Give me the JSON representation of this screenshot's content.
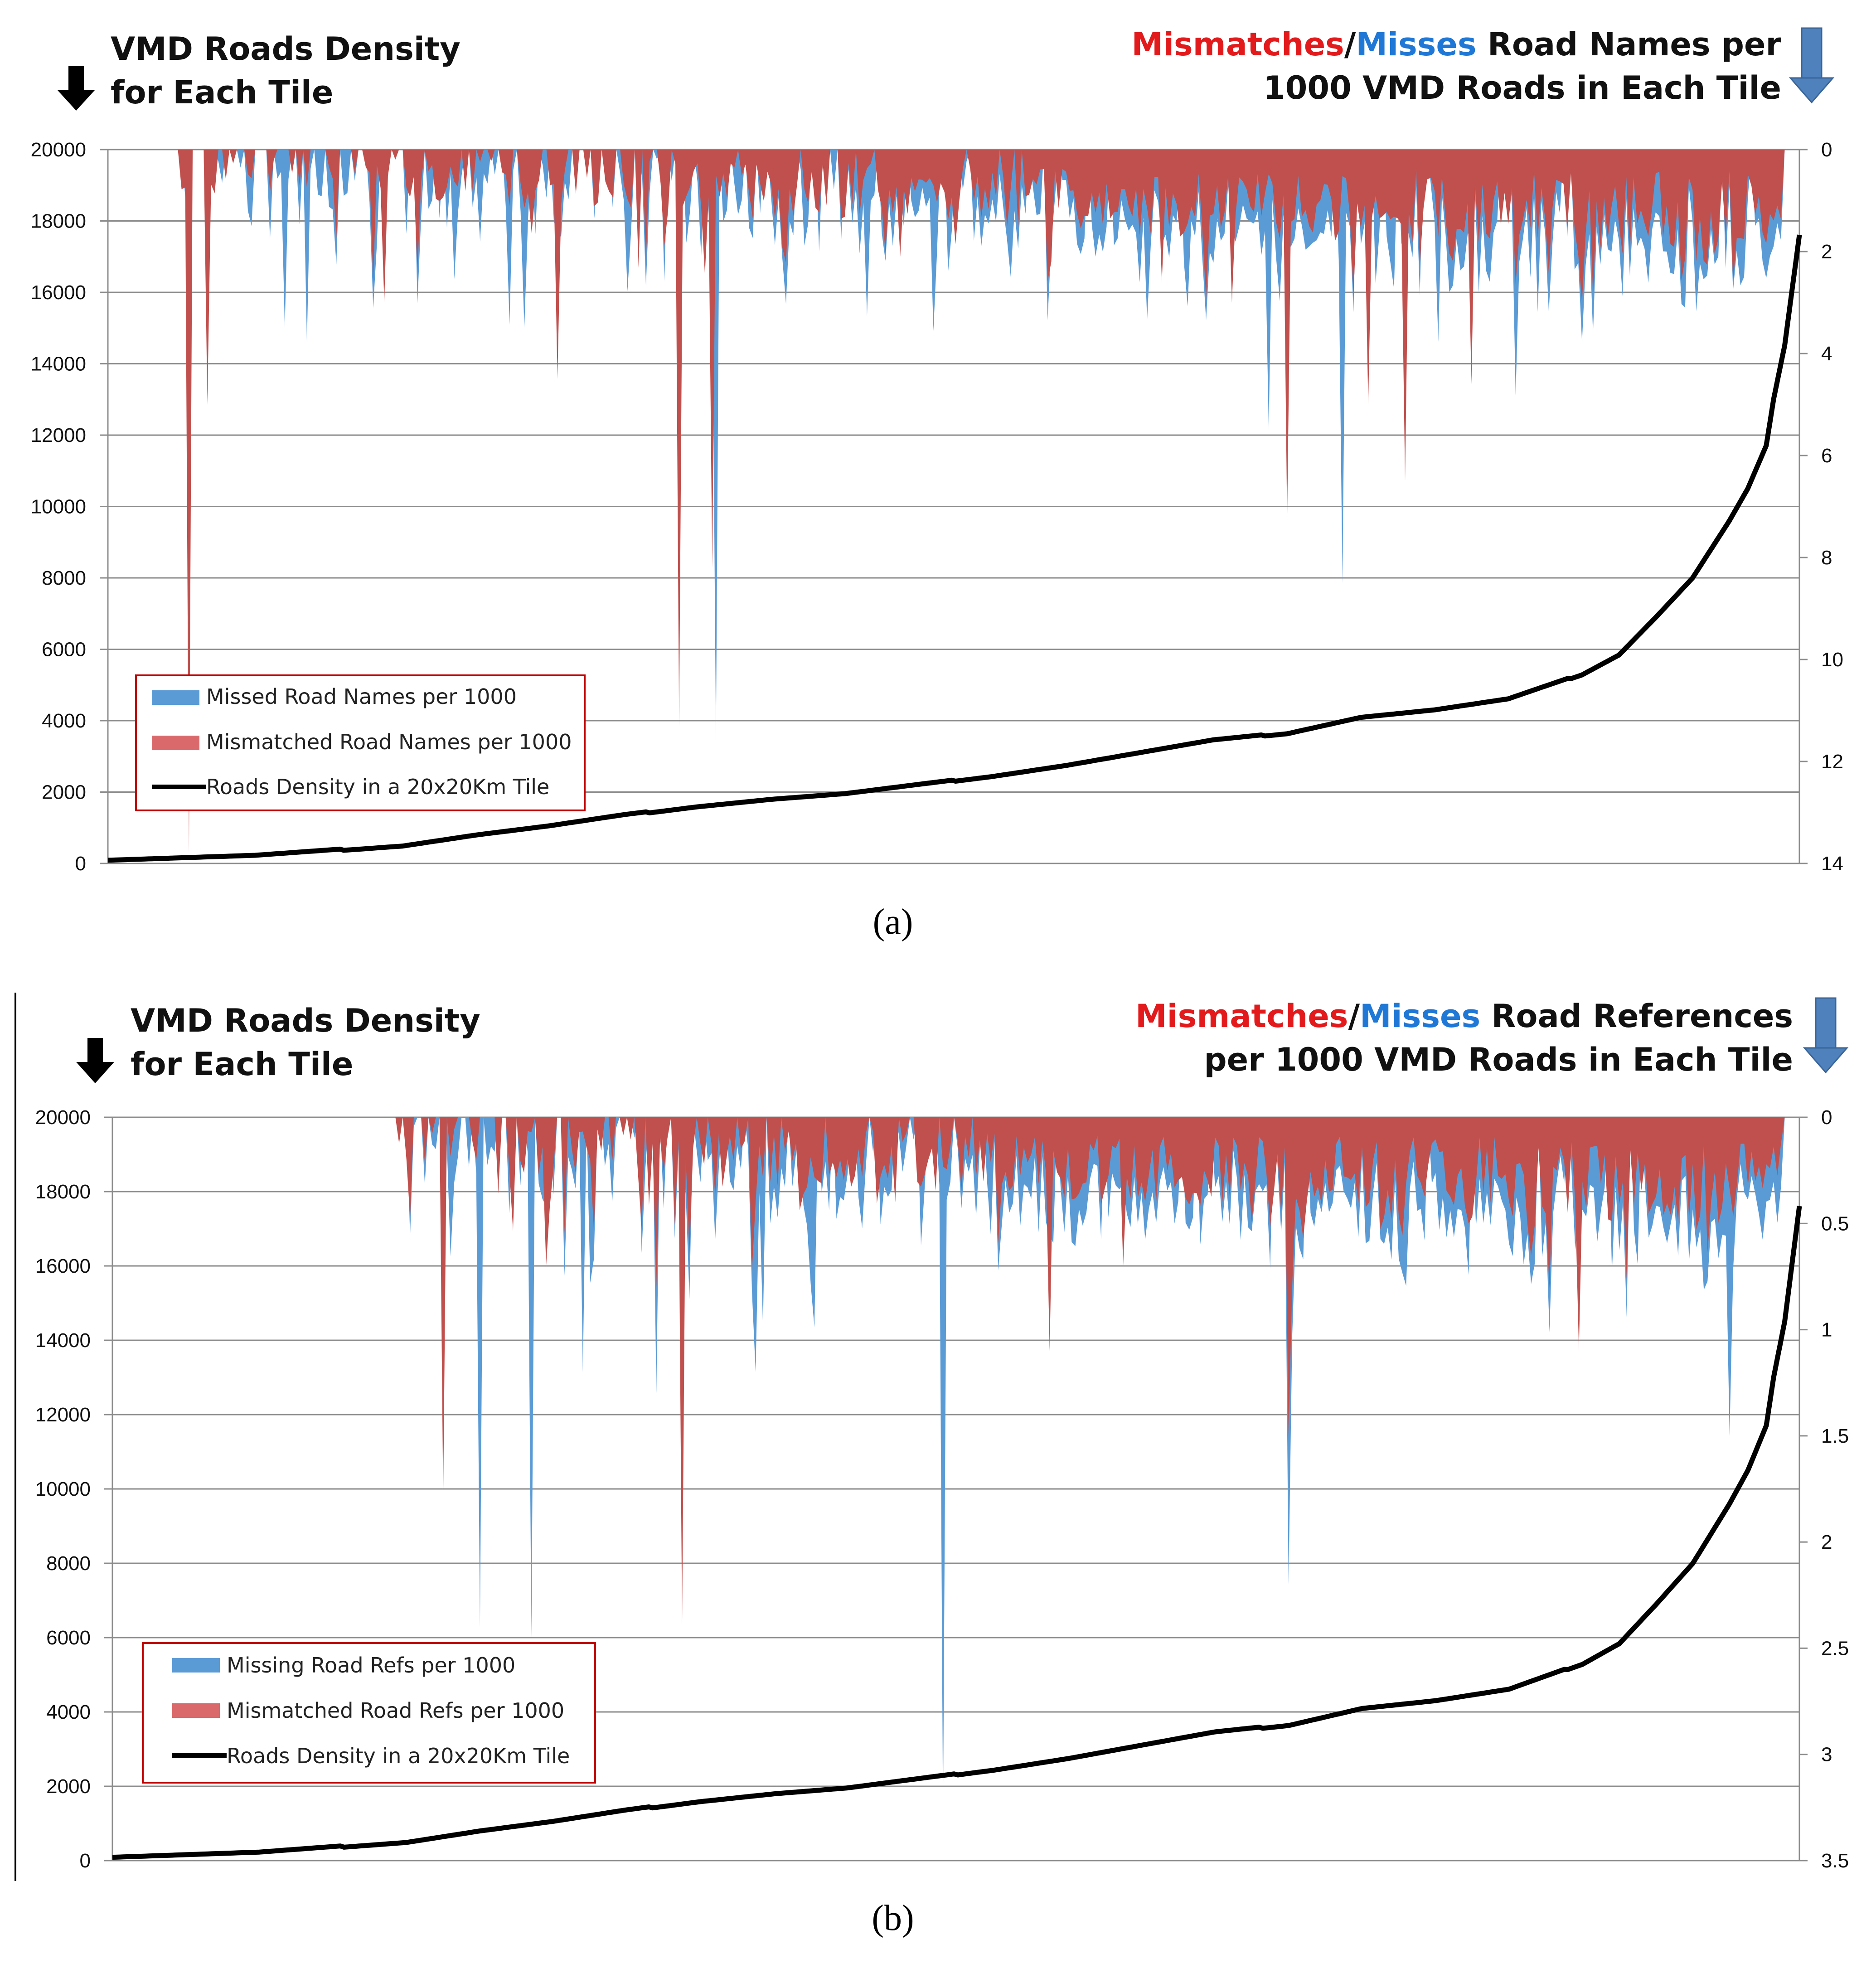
{
  "panels": [
    {
      "caption": "(a)",
      "left_title": [
        "VMD Roads Density",
        "for Each Tile"
      ],
      "right_title_line1": {
        "mismatches": "Mismatches",
        "slash": "/",
        "misses": "Misses",
        "rest": " Road Names per"
      },
      "right_title_line2": "1000 VMD Roads in Each Tile",
      "legend": [
        "Missed Road Names per 1000",
        "Mismatched Road Names per 1000",
        "Roads Density in a 20x20Km Tile"
      ]
    },
    {
      "caption": "(b)",
      "left_title": [
        "VMD Roads Density",
        "for Each Tile"
      ],
      "right_title_line1": {
        "mismatches": "Mismatches",
        "slash": "/",
        "misses": "Misses",
        "rest": " Road References"
      },
      "right_title_line2": "per 1000 VMD Roads in Each Tile",
      "legend": [
        "Missing Road Refs per 1000",
        "Mismatched Road Refs per 1000",
        "Roads Density in a 20x20Km Tile"
      ]
    }
  ],
  "chart_data": [
    {
      "type": "area",
      "title": "Mismatches/Misses Road Names per 1000 VMD Roads in Each Tile",
      "colors": {
        "missed": "#5b9bd5",
        "mismatched": "#c0504d",
        "density": "#000000",
        "title_red": "#e31a1c",
        "title_blue": "#1f78d6",
        "legend_border": "#c00000"
      },
      "n_tiles": 460,
      "left_axis": {
        "label": "VMD Roads Density for Each Tile",
        "ylim": [
          0,
          20000
        ],
        "ticks": [
          0,
          2000,
          4000,
          6000,
          8000,
          10000,
          12000,
          14000,
          16000,
          18000,
          20000
        ],
        "tick_labels": [
          "0",
          "2000",
          "4000",
          "6000",
          "8000",
          "10000",
          "12000",
          "14000",
          "16000",
          "18000",
          "20000"
        ]
      },
      "right_axis": {
        "label": "Mismatches/Misses per 1000",
        "ylim": [
          0,
          14
        ],
        "inverted": true,
        "ticks": [
          0,
          2,
          4,
          6,
          8,
          10,
          12,
          14
        ],
        "tick_labels": [
          "0",
          "2",
          "4",
          "6",
          "8",
          "10",
          "12",
          "14"
        ]
      },
      "density_curve": {
        "x": [
          0,
          40,
          80,
          100,
          120,
          140,
          160,
          180,
          200,
          220,
          240,
          260,
          280,
          300,
          320,
          340,
          360,
          380,
          400,
          410,
          420,
          430,
          440,
          445,
          450,
          452,
          455,
          459
        ],
        "y": [
          100,
          220,
          500,
          800,
          1050,
          1350,
          1600,
          1800,
          1950,
          2200,
          2450,
          2750,
          3100,
          3450,
          3650,
          4100,
          4300,
          4600,
          5300,
          5850,
          6900,
          8000,
          9600,
          10500,
          11700,
          13000,
          14500,
          17600
        ]
      },
      "missed_spikes": [
        {
          "x": 22,
          "v": 4.8
        },
        {
          "x": 27,
          "v": 4.5
        },
        {
          "x": 39,
          "v": 1.5
        },
        {
          "x": 48,
          "v": 3.5
        },
        {
          "x": 54,
          "v": 3.8
        },
        {
          "x": 113,
          "v": 3.5
        },
        {
          "x": 155,
          "v": 3.8
        },
        {
          "x": 165,
          "v": 5.0
        },
        {
          "x": 165,
          "v": 11.6
        },
        {
          "x": 228,
          "v": 2.4
        },
        {
          "x": 245,
          "v": 2.5
        },
        {
          "x": 315,
          "v": 5.5
        },
        {
          "x": 335,
          "v": 8.5
        }
      ],
      "mismatched_spikes": [
        {
          "x": 22,
          "v": 13.8
        },
        {
          "x": 27,
          "v": 5.0
        },
        {
          "x": 75,
          "v": 3.0
        },
        {
          "x": 84,
          "v": 2.4
        },
        {
          "x": 122,
          "v": 4.5
        },
        {
          "x": 155,
          "v": 11.3
        },
        {
          "x": 164,
          "v": 8.2
        },
        {
          "x": 215,
          "v": 2.1
        },
        {
          "x": 256,
          "v": 2.2
        },
        {
          "x": 286,
          "v": 2.6
        },
        {
          "x": 305,
          "v": 3.0
        },
        {
          "x": 320,
          "v": 7.3
        },
        {
          "x": 342,
          "v": 5.0
        },
        {
          "x": 352,
          "v": 6.5
        },
        {
          "x": 370,
          "v": 4.6
        },
        {
          "x": 400,
          "v": 3.0
        }
      ]
    },
    {
      "type": "area",
      "title": "Mismatches/Misses Road References per 1000 VMD Roads in Each Tile",
      "colors": {
        "missed": "#5b9bd5",
        "mismatched": "#c0504d",
        "density": "#000000",
        "title_red": "#e31a1c",
        "title_blue": "#1f78d6",
        "legend_border": "#c00000"
      },
      "n_tiles": 460,
      "left_axis": {
        "label": "VMD Roads Density for Each Tile",
        "ylim": [
          0,
          20000
        ],
        "ticks": [
          0,
          2000,
          4000,
          6000,
          8000,
          10000,
          12000,
          14000,
          16000,
          18000,
          20000
        ],
        "tick_labels": [
          "0",
          "2000",
          "4000",
          "6000",
          "8000",
          "10000",
          "12000",
          "14000",
          "16000",
          "18000",
          "20000"
        ]
      },
      "right_axis": {
        "label": "Mismatches/Misses per 1000",
        "ylim": [
          0,
          3.5
        ],
        "inverted": true,
        "ticks": [
          0,
          0.5,
          1,
          1.5,
          2,
          2.5,
          3,
          3.5
        ],
        "tick_labels": [
          "0",
          "0.5",
          "1",
          "1.5",
          "2",
          "2.5",
          "3",
          "3.5"
        ]
      },
      "density_curve": {
        "x": [
          0,
          40,
          80,
          100,
          120,
          140,
          160,
          180,
          200,
          220,
          240,
          260,
          280,
          300,
          320,
          340,
          360,
          380,
          400,
          410,
          420,
          430,
          440,
          445,
          450,
          452,
          455,
          459
        ],
        "y": [
          100,
          220,
          500,
          800,
          1050,
          1350,
          1600,
          1800,
          1950,
          2200,
          2450,
          2750,
          3100,
          3450,
          3650,
          4100,
          4300,
          4600,
          5300,
          5850,
          6900,
          8000,
          9600,
          10500,
          11700,
          13000,
          14500,
          17600
        ]
      },
      "missed_spikes": [
        {
          "x": 90,
          "v": 1.1
        },
        {
          "x": 100,
          "v": 2.4
        },
        {
          "x": 114,
          "v": 2.45
        },
        {
          "x": 128,
          "v": 1.2
        },
        {
          "x": 148,
          "v": 1.3
        },
        {
          "x": 175,
          "v": 1.2
        },
        {
          "x": 226,
          "v": 3.3
        },
        {
          "x": 320,
          "v": 1.1
        },
        {
          "x": 320,
          "v": 2.2
        },
        {
          "x": 440,
          "v": 1.5
        }
      ],
      "mismatched_spikes": [
        {
          "x": 90,
          "v": 1.8
        },
        {
          "x": 118,
          "v": 0.7
        },
        {
          "x": 148,
          "v": 0.8
        },
        {
          "x": 155,
          "v": 2.4
        },
        {
          "x": 175,
          "v": 0.4
        },
        {
          "x": 213,
          "v": 0.4
        },
        {
          "x": 255,
          "v": 1.1
        },
        {
          "x": 275,
          "v": 0.7
        },
        {
          "x": 320,
          "v": 1.5
        },
        {
          "x": 399,
          "v": 1.1
        }
      ]
    }
  ]
}
